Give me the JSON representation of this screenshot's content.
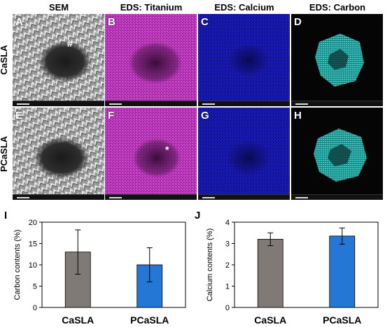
{
  "figure": {
    "columns": [
      "SEM",
      "EDS: Titanium",
      "EDS: Calcium",
      "EDS: Carbon"
    ],
    "rows": [
      "CaSLA",
      "PCaSLA"
    ],
    "panel_letters_row1": [
      "A",
      "B",
      "C",
      "D"
    ],
    "panel_letters_row2": [
      "E",
      "F",
      "G",
      "H"
    ],
    "marks": {
      "A": "#",
      "F": "*"
    },
    "colors": {
      "sem": "#8a8a8a",
      "titanium": "#c236c2",
      "calcium": "#1a1ad0",
      "carbon": "#34c4c0",
      "background_dark": "#050505"
    }
  },
  "chart_data": [
    {
      "panel": "I",
      "type": "bar",
      "categories": [
        "CaSLA",
        "PCaSLA"
      ],
      "values": [
        13.0,
        10.0
      ],
      "errors": [
        5.2,
        4.0
      ],
      "colors": [
        "#7f7a75",
        "#2577d6"
      ],
      "ylabel": "Carbon contents (%)",
      "ylim": [
        0,
        20
      ],
      "yticks": [
        "0",
        "5",
        "10",
        "15",
        "20"
      ]
    },
    {
      "panel": "J",
      "type": "bar",
      "categories": [
        "CaSLA",
        "PCaSLA"
      ],
      "values": [
        3.2,
        3.35
      ],
      "errors": [
        0.3,
        0.38
      ],
      "colors": [
        "#7f7a75",
        "#2577d6"
      ],
      "ylabel": "Calcium contents (%)",
      "ylim": [
        0,
        4
      ],
      "yticks": [
        "0",
        "1",
        "2",
        "3",
        "4"
      ]
    }
  ]
}
